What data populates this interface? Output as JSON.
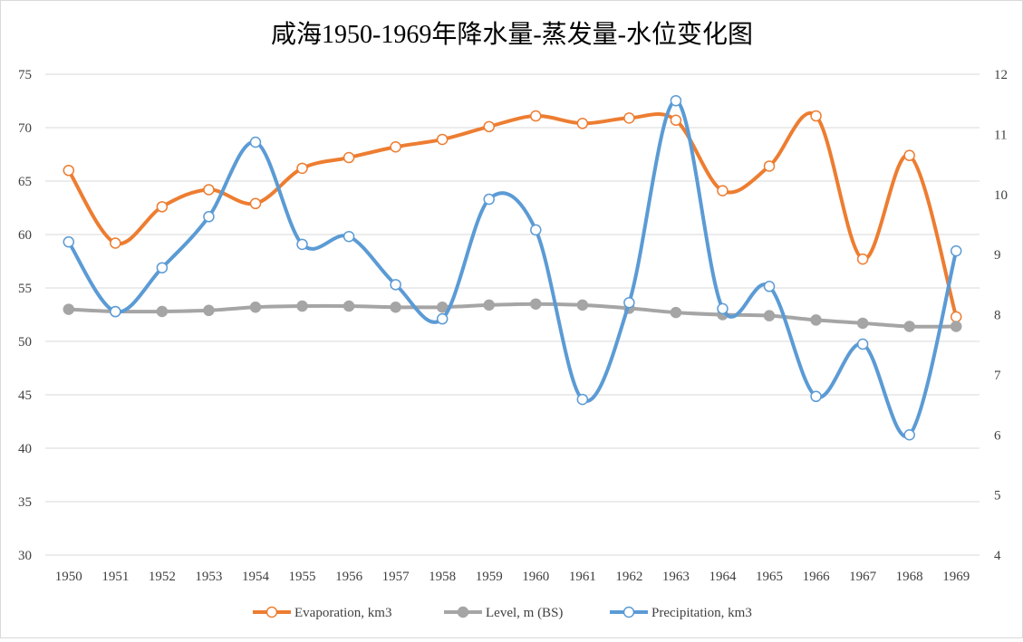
{
  "chart_data": {
    "type": "line",
    "title": "咸海1950-1969年降水量-蒸发量-水位变化图",
    "categories": [
      "1950",
      "1951",
      "1952",
      "1953",
      "1954",
      "1955",
      "1956",
      "1957",
      "1958",
      "1959",
      "1960",
      "1961",
      "1962",
      "1963",
      "1964",
      "1965",
      "1966",
      "1967",
      "1968",
      "1969"
    ],
    "y_left": {
      "range": [
        30,
        75
      ],
      "ticks": [
        30,
        35,
        40,
        45,
        50,
        55,
        60,
        65,
        70,
        75
      ]
    },
    "y_right": {
      "range": [
        4,
        12
      ],
      "ticks": [
        4,
        5,
        6,
        7,
        8,
        9,
        10,
        11,
        12
      ]
    },
    "grid": true,
    "smooth": true,
    "legend_position": "bottom",
    "series": [
      {
        "name": "Evaporation, km3",
        "axis": "left",
        "color": "#ED7D31",
        "marker": "hollow-circle",
        "values": [
          66.0,
          59.2,
          62.6,
          64.2,
          62.9,
          66.2,
          67.2,
          68.2,
          68.9,
          70.1,
          71.1,
          70.4,
          70.9,
          70.7,
          64.1,
          66.4,
          71.1,
          57.7,
          67.4,
          52.3
        ]
      },
      {
        "name": "Level, m (BS)",
        "axis": "left",
        "color": "#A5A5A5",
        "marker": "filled-circle",
        "values": [
          53.0,
          52.8,
          52.8,
          52.9,
          53.2,
          53.3,
          53.3,
          53.2,
          53.2,
          53.4,
          53.5,
          53.4,
          53.1,
          52.7,
          52.5,
          52.4,
          52.0,
          51.7,
          51.4,
          51.4
        ]
      },
      {
        "name": "Precipitation, km3",
        "axis": "right",
        "color": "#5B9BD5",
        "marker": "hollow-circle",
        "values": [
          9.21,
          8.05,
          8.78,
          9.63,
          10.87,
          9.17,
          9.3,
          8.5,
          7.93,
          9.92,
          9.41,
          6.59,
          8.2,
          11.56,
          8.1,
          8.47,
          6.64,
          7.51,
          6.0,
          9.06
        ]
      }
    ]
  }
}
